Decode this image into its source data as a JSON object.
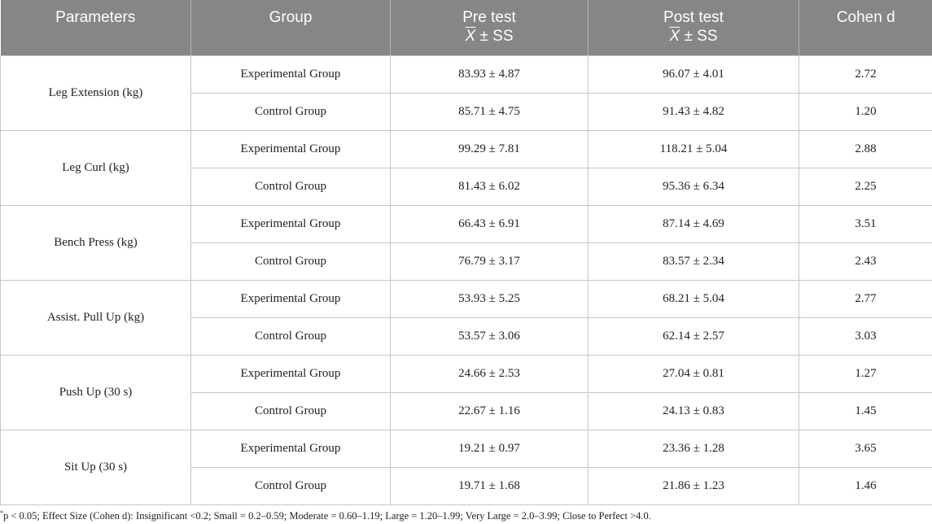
{
  "headers": {
    "parameters": "Parameters",
    "group": "Group",
    "pre_title": "Pre test",
    "pre_sub_symbol": "X",
    "pre_sub_rest": " ± SS",
    "post_title": "Post test",
    "post_sub_symbol": "X",
    "post_sub_rest": " ± SS",
    "cohen": "Cohen d"
  },
  "rows": [
    {
      "parameter": "Leg Extension (kg)",
      "group": "Experimental Group",
      "pre": "83.93 ± 4.87",
      "post": "96.07 ± 4.01",
      "cohen": "2.72"
    },
    {
      "group": "Control Group",
      "pre": "85.71 ± 4.75",
      "post": "91.43 ± 4.82",
      "cohen": "1.20"
    },
    {
      "parameter": "Leg Curl (kg)",
      "group": "Experimental Group",
      "pre": "99.29 ± 7.81",
      "post": "118.21 ± 5.04",
      "cohen": "2.88"
    },
    {
      "group": "Control Group",
      "pre": "81.43 ± 6.02",
      "post": "95.36 ± 6.34",
      "cohen": "2.25"
    },
    {
      "parameter": "Bench Press (kg)",
      "group": "Experimental Group",
      "pre": "66.43 ± 6.91",
      "post": "87.14 ± 4.69",
      "cohen": "3.51"
    },
    {
      "group": "Control Group",
      "pre": "76.79 ± 3.17",
      "post": "83.57 ± 2.34",
      "cohen": "2.43"
    },
    {
      "parameter": "Assist. Pull Up (kg)",
      "group": "Experimental Group",
      "pre": "53.93 ± 5.25",
      "post": "68.21 ± 5.04",
      "cohen": "2.77"
    },
    {
      "group": "Control Group",
      "pre": "53.57 ± 3.06",
      "post": "62.14 ± 2.57",
      "cohen": "3.03"
    },
    {
      "parameter": "Push Up (30 s)",
      "group": "Experimental Group",
      "pre": "24.66 ± 2.53",
      "post": "27.04 ± 0.81",
      "cohen": "1.27"
    },
    {
      "group": "Control Group",
      "pre": "22.67 ± 1.16",
      "post": "24.13 ± 0.83",
      "cohen": "1.45"
    },
    {
      "parameter": "Sit Up (30 s)",
      "group": "Experimental Group",
      "pre": "19.21 ± 0.97",
      "post": "23.36 ± 1.28",
      "cohen": "3.65"
    },
    {
      "group": "Control Group",
      "pre": "19.71 ± 1.68",
      "post": "21.86 ± 1.23",
      "cohen": "1.46"
    }
  ],
  "footnote": {
    "marker": "*",
    "text": "p < 0.05; Effect Size (Cohen d): Insignificant <0.2; Small = 0.2–0.59; Moderate = 0.60–1.19; Large = 1.20–1.99; Very Large = 2.0–3.99; Close to Perfect >4.0."
  }
}
